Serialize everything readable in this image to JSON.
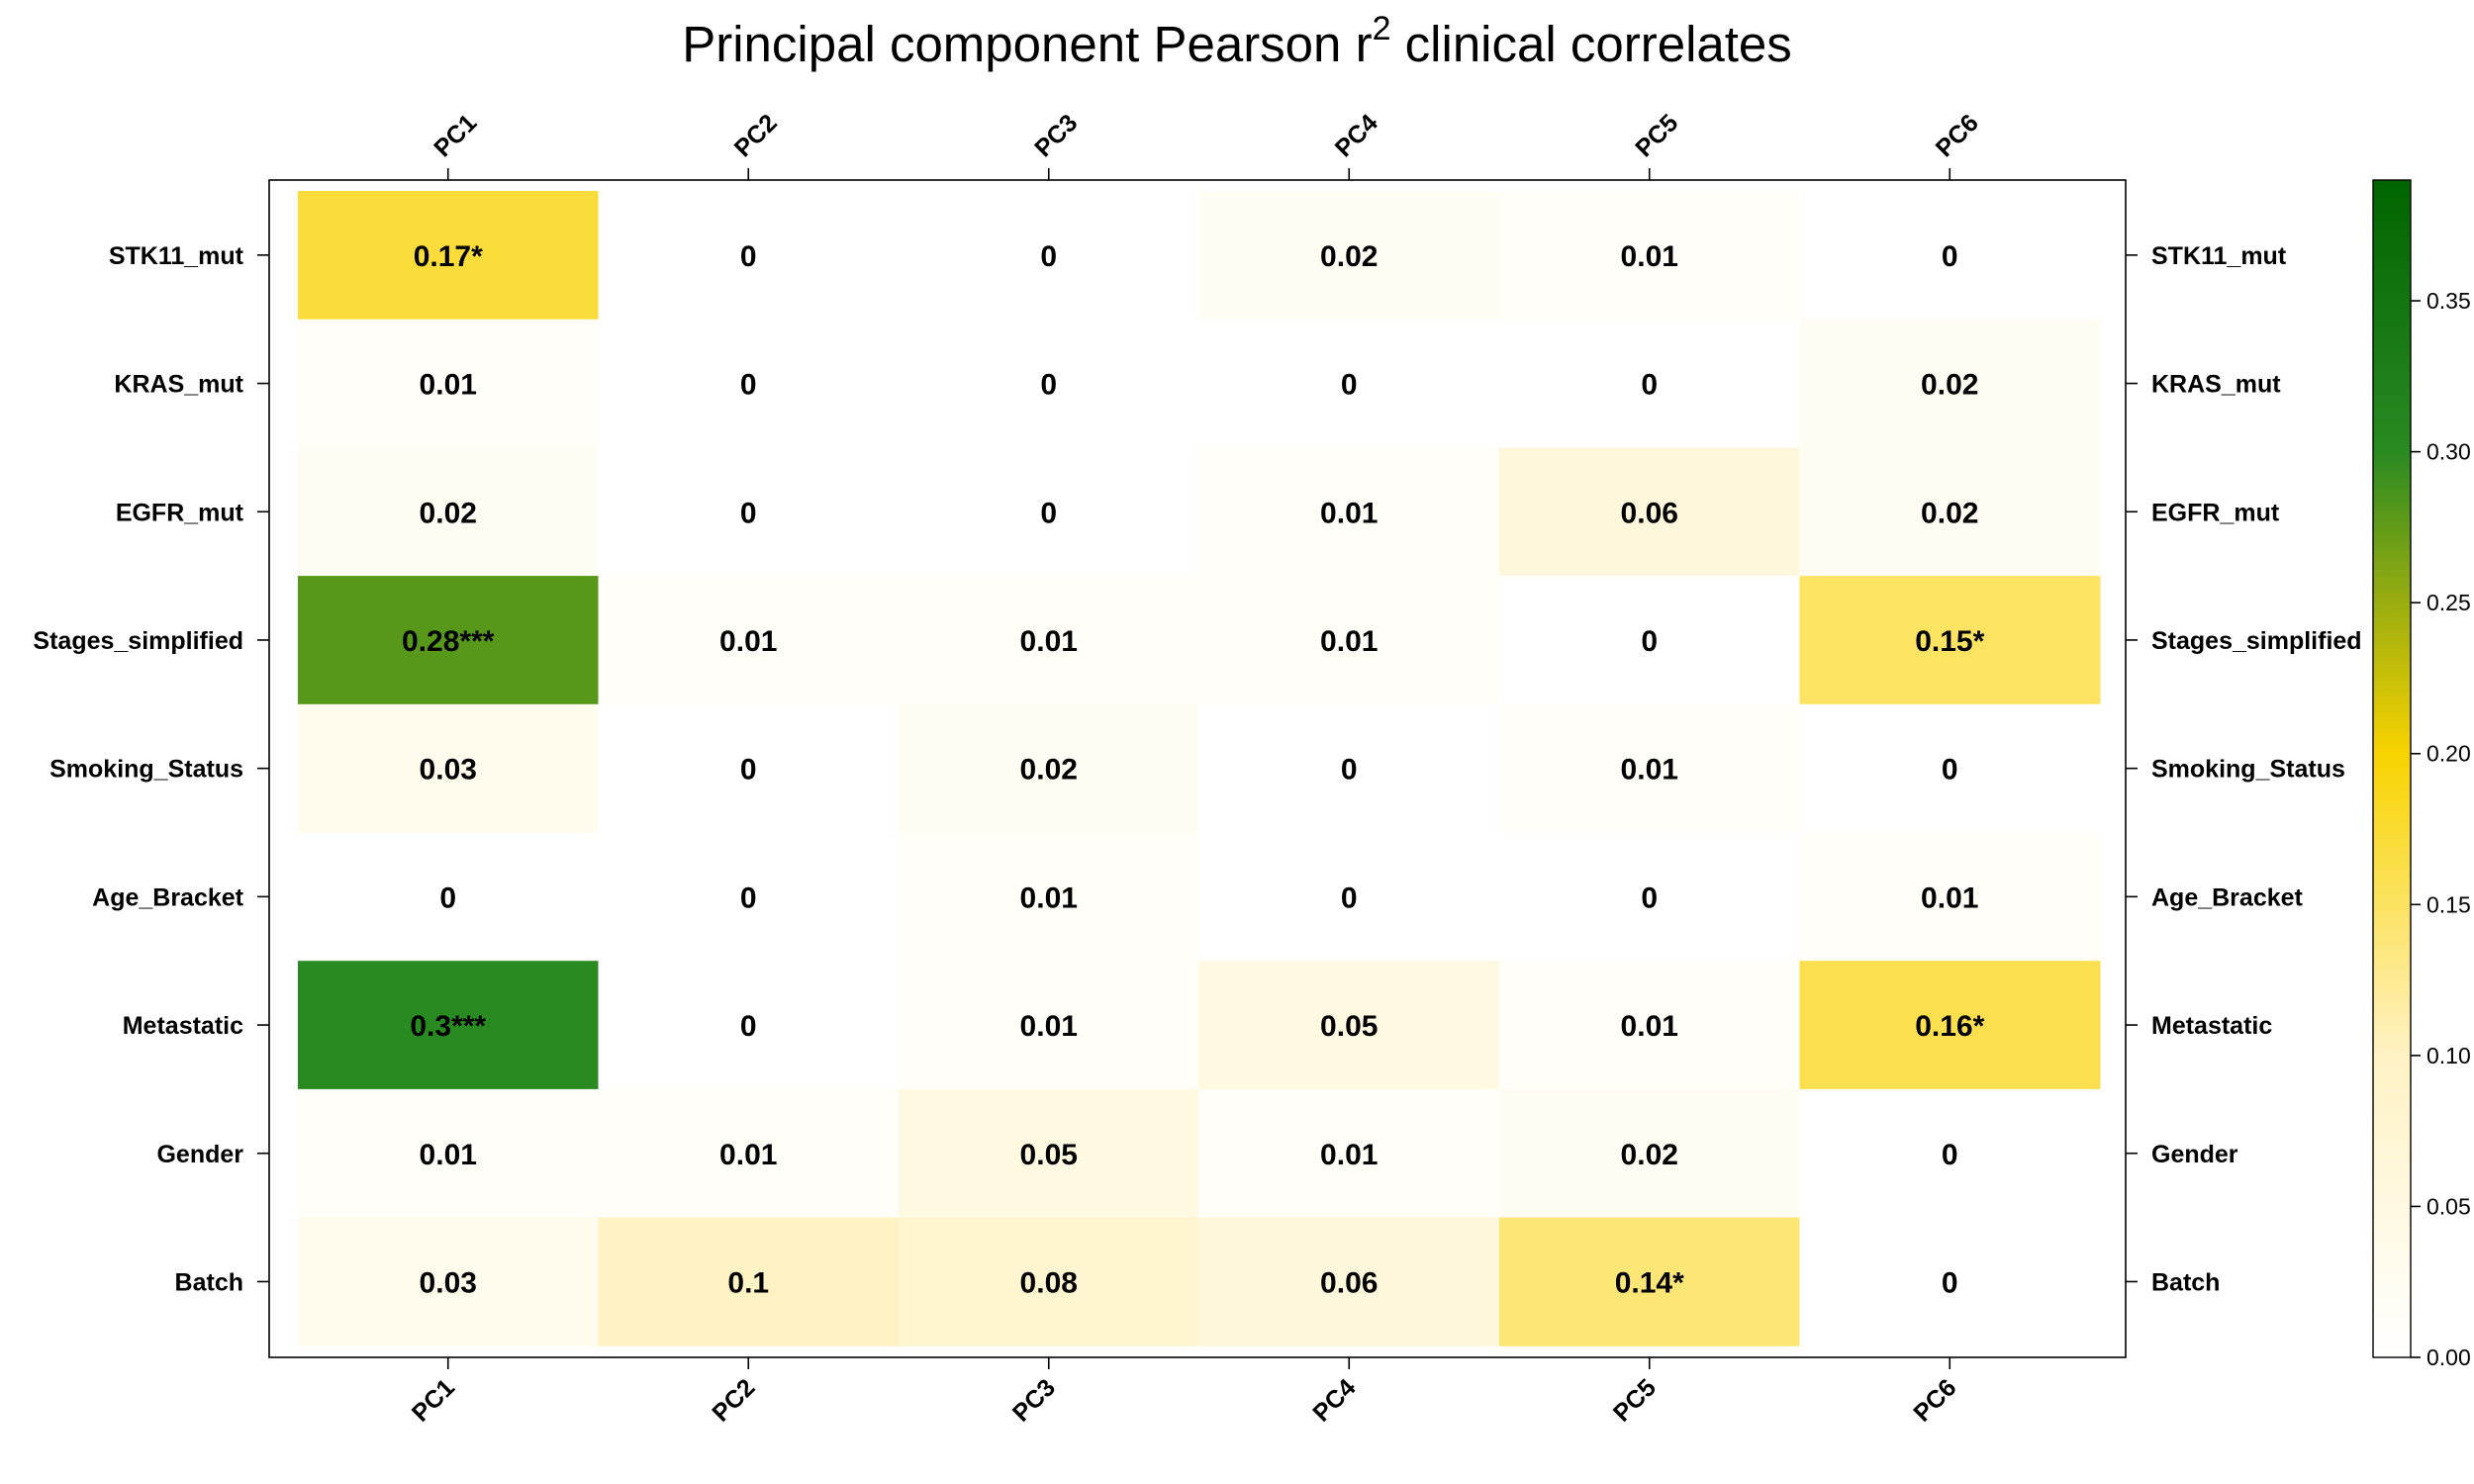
{
  "chart_data": {
    "type": "heatmap",
    "title": {
      "main": "Principal component Pearson r",
      "superscript": "2",
      "suffix": " clinical correlates"
    },
    "columns": [
      "PC1",
      "PC2",
      "PC3",
      "PC4",
      "PC5",
      "PC6"
    ],
    "rows": [
      "STK11_mut",
      "KRAS_mut",
      "EGFR_mut",
      "Stages_simplified",
      "Smoking_Status",
      "Age_Bracket",
      "Metastatic",
      "Gender",
      "Batch"
    ],
    "values": [
      [
        0.17,
        0,
        0,
        0.02,
        0.01,
        0
      ],
      [
        0.01,
        0,
        0,
        0,
        0,
        0.02
      ],
      [
        0.02,
        0,
        0,
        0.01,
        0.06,
        0.02
      ],
      [
        0.28,
        0.01,
        0.01,
        0.01,
        0,
        0.15
      ],
      [
        0.03,
        0,
        0.02,
        0,
        0.01,
        0
      ],
      [
        0,
        0,
        0.01,
        0,
        0,
        0.01
      ],
      [
        0.3,
        0,
        0.01,
        0.05,
        0.01,
        0.16
      ],
      [
        0.01,
        0.01,
        0.05,
        0.01,
        0.02,
        0
      ],
      [
        0.03,
        0.1,
        0.08,
        0.06,
        0.14,
        0
      ]
    ],
    "cell_labels": [
      [
        "0.17*",
        "0",
        "0",
        "0.02",
        "0.01",
        "0"
      ],
      [
        "0.01",
        "0",
        "0",
        "0",
        "0",
        "0.02"
      ],
      [
        "0.02",
        "0",
        "0",
        "0.01",
        "0.06",
        "0.02"
      ],
      [
        "0.28***",
        "0.01",
        "0.01",
        "0.01",
        "0",
        "0.15*"
      ],
      [
        "0.03",
        "0",
        "0.02",
        "0",
        "0.01",
        "0"
      ],
      [
        "0",
        "0",
        "0.01",
        "0",
        "0",
        "0.01"
      ],
      [
        "0.3***",
        "0",
        "0.01",
        "0.05",
        "0.01",
        "0.16*"
      ],
      [
        "0.01",
        "0.01",
        "0.05",
        "0.01",
        "0.02",
        "0"
      ],
      [
        "0.03",
        "0.1",
        "0.08",
        "0.06",
        "0.14*",
        "0"
      ]
    ],
    "colorbar": {
      "range": [
        0,
        0.39
      ],
      "ticks": [
        "0.00",
        "0.05",
        "0.10",
        "0.15",
        "0.20",
        "0.25",
        "0.30",
        "0.35"
      ],
      "color_stops": [
        {
          "value": 0.0,
          "color": "#ffffff"
        },
        {
          "value": 0.1,
          "color": "#fff2c4"
        },
        {
          "value": 0.2,
          "color": "#f8d300"
        },
        {
          "value": 0.25,
          "color": "#9aad10"
        },
        {
          "value": 0.3,
          "color": "#2a8a22"
        },
        {
          "value": 0.39,
          "color": "#006400"
        }
      ]
    },
    "grid": false,
    "legend_placement": "right"
  }
}
